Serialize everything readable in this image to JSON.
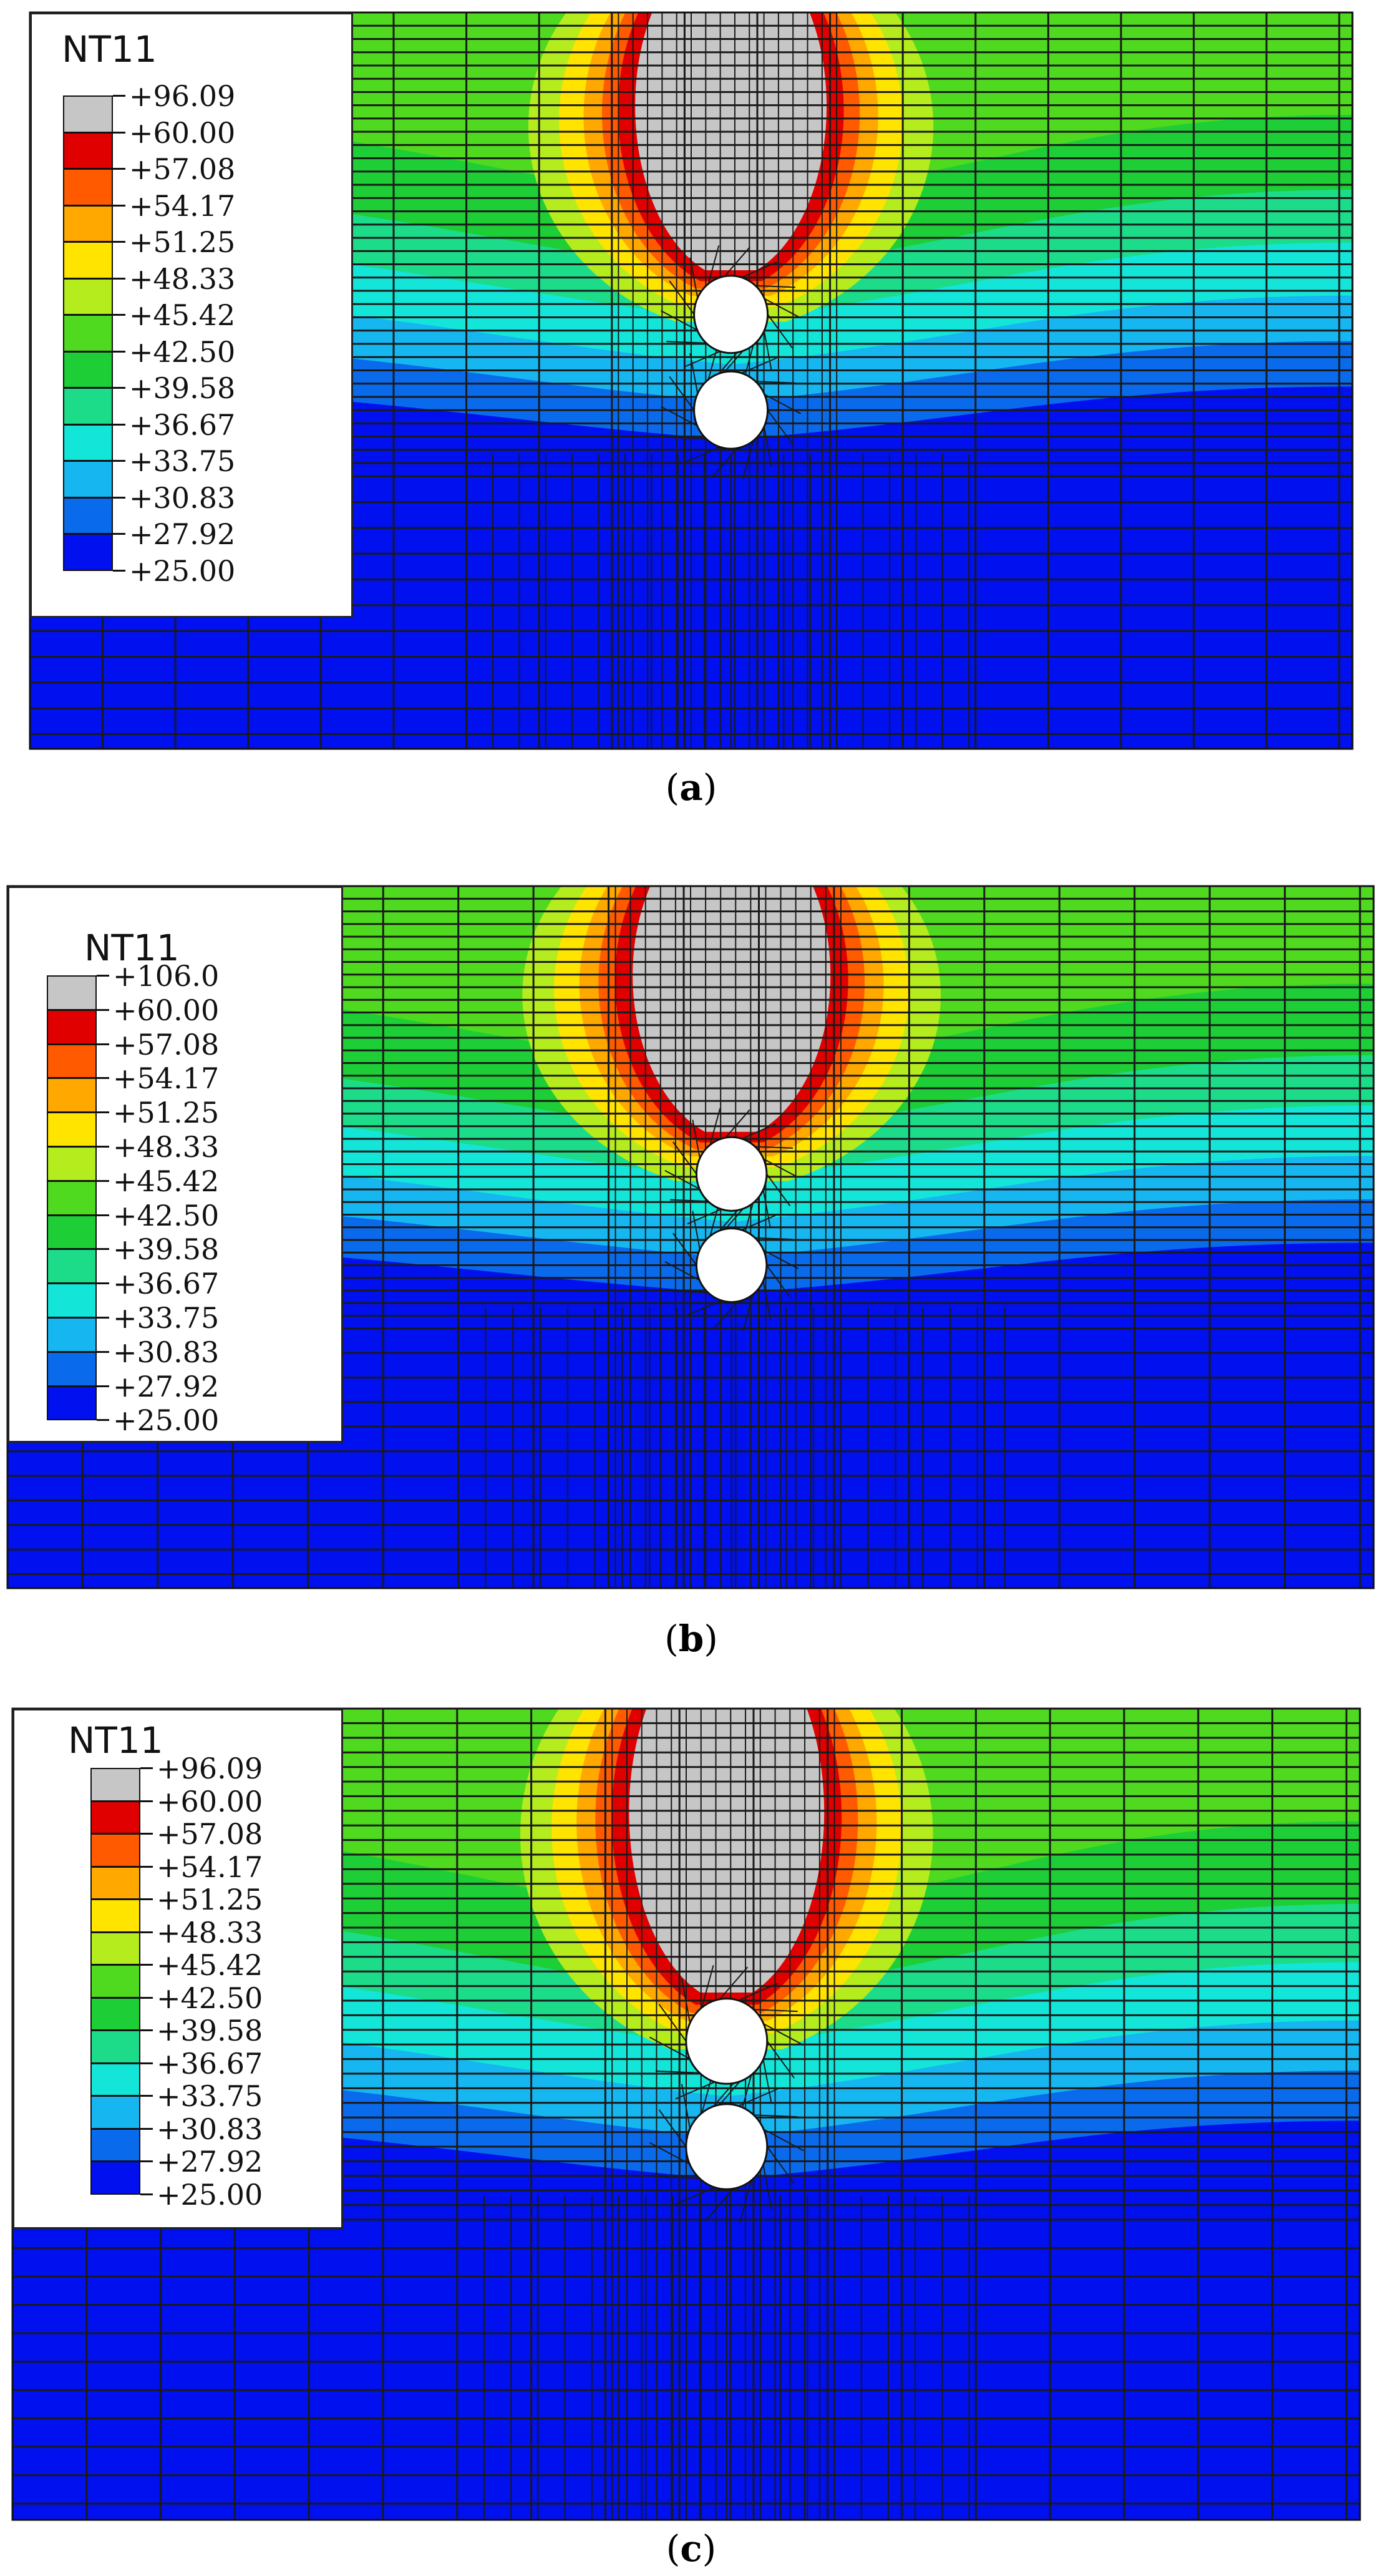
{
  "colors": [
    "#c6c6c6",
    "#e00000",
    "#ff5a00",
    "#ffa800",
    "#ffe400",
    "#b4ec1e",
    "#4fd91f",
    "#1dce36",
    "#1cdc8a",
    "#13e6d8",
    "#16b7f0",
    "#0a6aec",
    "#0010ee"
  ],
  "mesh_color": "#1a1a1a",
  "panels": [
    {
      "caption_letter": "a",
      "legend": {
        "title": "NT11",
        "labels": [
          "+96.09",
          "+60.00",
          "+57.08",
          "+54.17",
          "+51.25",
          "+48.33",
          "+45.42",
          "+42.50",
          "+39.58",
          "+36.67",
          "+33.75",
          "+30.83",
          "+27.92",
          "+25.00"
        ]
      }
    },
    {
      "caption_letter": "b",
      "legend": {
        "title": "NT11",
        "labels": [
          "+106.0",
          "+60.00",
          "+57.08",
          "+54.17",
          "+51.25",
          "+48.33",
          "+45.42",
          "+42.50",
          "+39.58",
          "+36.67",
          "+33.75",
          "+30.83",
          "+27.92",
          "+25.00"
        ]
      }
    },
    {
      "caption_letter": "c",
      "legend": {
        "title": "NT11",
        "labels": [
          "+96.09",
          "+60.00",
          "+57.08",
          "+54.17",
          "+51.25",
          "+48.33",
          "+45.42",
          "+42.50",
          "+39.58",
          "+36.67",
          "+33.75",
          "+30.83",
          "+27.92",
          "+25.00"
        ]
      }
    }
  ]
}
